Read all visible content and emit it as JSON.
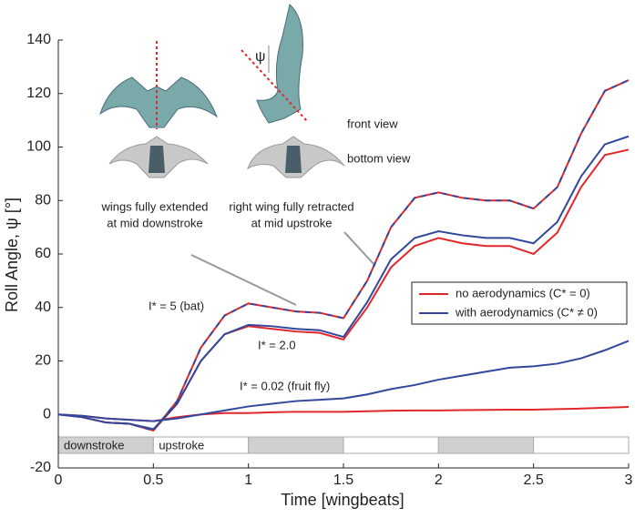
{
  "chart_data": {
    "type": "line",
    "x_label": "Time [wingbeats]",
    "y_label": "Roll Angle, ψ [°]",
    "x": [
      0,
      0.125,
      0.25,
      0.375,
      0.5,
      0.625,
      0.75,
      0.875,
      1,
      1.125,
      1.25,
      1.375,
      1.5,
      1.625,
      1.75,
      1.875,
      2,
      2.125,
      2.25,
      2.375,
      2.5,
      2.625,
      2.75,
      2.875,
      3
    ],
    "series": [
      {
        "name": "no aerodynamics (C* = 0)",
        "color": "#e0282c",
        "lines": [
          [
            0,
            -1,
            -3,
            -3.5,
            -6,
            5,
            25,
            37,
            41.5,
            40,
            38.5,
            38,
            36,
            50,
            70,
            81,
            83,
            81,
            80,
            80,
            77,
            85,
            105,
            121,
            125
          ],
          [
            0,
            -1,
            -3,
            -3.5,
            -6,
            4,
            20,
            30,
            33,
            32,
            31,
            30.5,
            28,
            40,
            55,
            63,
            66,
            64,
            63,
            63,
            60,
            68,
            85,
            97,
            99
          ],
          [
            0,
            -0.5,
            -1.5,
            -2,
            -2.5,
            -1,
            0,
            0.5,
            0.5,
            0.8,
            1,
            1,
            1,
            1.2,
            1.4,
            1.5,
            1.5,
            1.6,
            1.7,
            1.8,
            1.8,
            2,
            2.2,
            2.5,
            2.8
          ]
        ]
      },
      {
        "name": "with aerodynamics (C* ≠ 0)",
        "color": "#33489c",
        "lines": [
          [
            0,
            -1,
            -3,
            -3.5,
            -6,
            5,
            25,
            37,
            41.5,
            40,
            38.5,
            38,
            36,
            50,
            70,
            81,
            83,
            81,
            80,
            80,
            77,
            85,
            105,
            121,
            125
          ],
          [
            0,
            -1,
            -3,
            -3.5,
            -5.5,
            4,
            20,
            30,
            33.5,
            33,
            32,
            31.5,
            29,
            42,
            58,
            66,
            68.5,
            67,
            66,
            66,
            64,
            72,
            89,
            101,
            104
          ],
          [
            0,
            -0.5,
            -1.5,
            -2,
            -2.5,
            -1.5,
            0,
            1.5,
            3,
            4,
            5,
            5.5,
            6,
            7.5,
            9.5,
            11,
            13,
            14.5,
            16,
            17.5,
            18,
            19,
            21,
            24,
            27.5
          ]
        ]
      }
    ],
    "curve_labels": [
      "I* = 5 (bat)",
      "I* = 2.0",
      "I* = 0.02 (fruit fly)"
    ],
    "phase_labels": [
      "downstroke",
      "upstroke"
    ],
    "annotations": {
      "front_view": "front view",
      "bottom_view": "bottom view",
      "left_caption": [
        "wings fully extended",
        "at mid downstroke"
      ],
      "right_caption": [
        "right wing fully retracted",
        "at mid upstroke"
      ],
      "psi": "ψ"
    },
    "xlim": [
      0,
      3
    ],
    "ylim": [
      -20,
      140
    ],
    "xticks": [
      0,
      0.5,
      1,
      1.5,
      2,
      2.5,
      3
    ],
    "yticks": [
      -20,
      0,
      20,
      40,
      60,
      80,
      100,
      120,
      140
    ]
  }
}
